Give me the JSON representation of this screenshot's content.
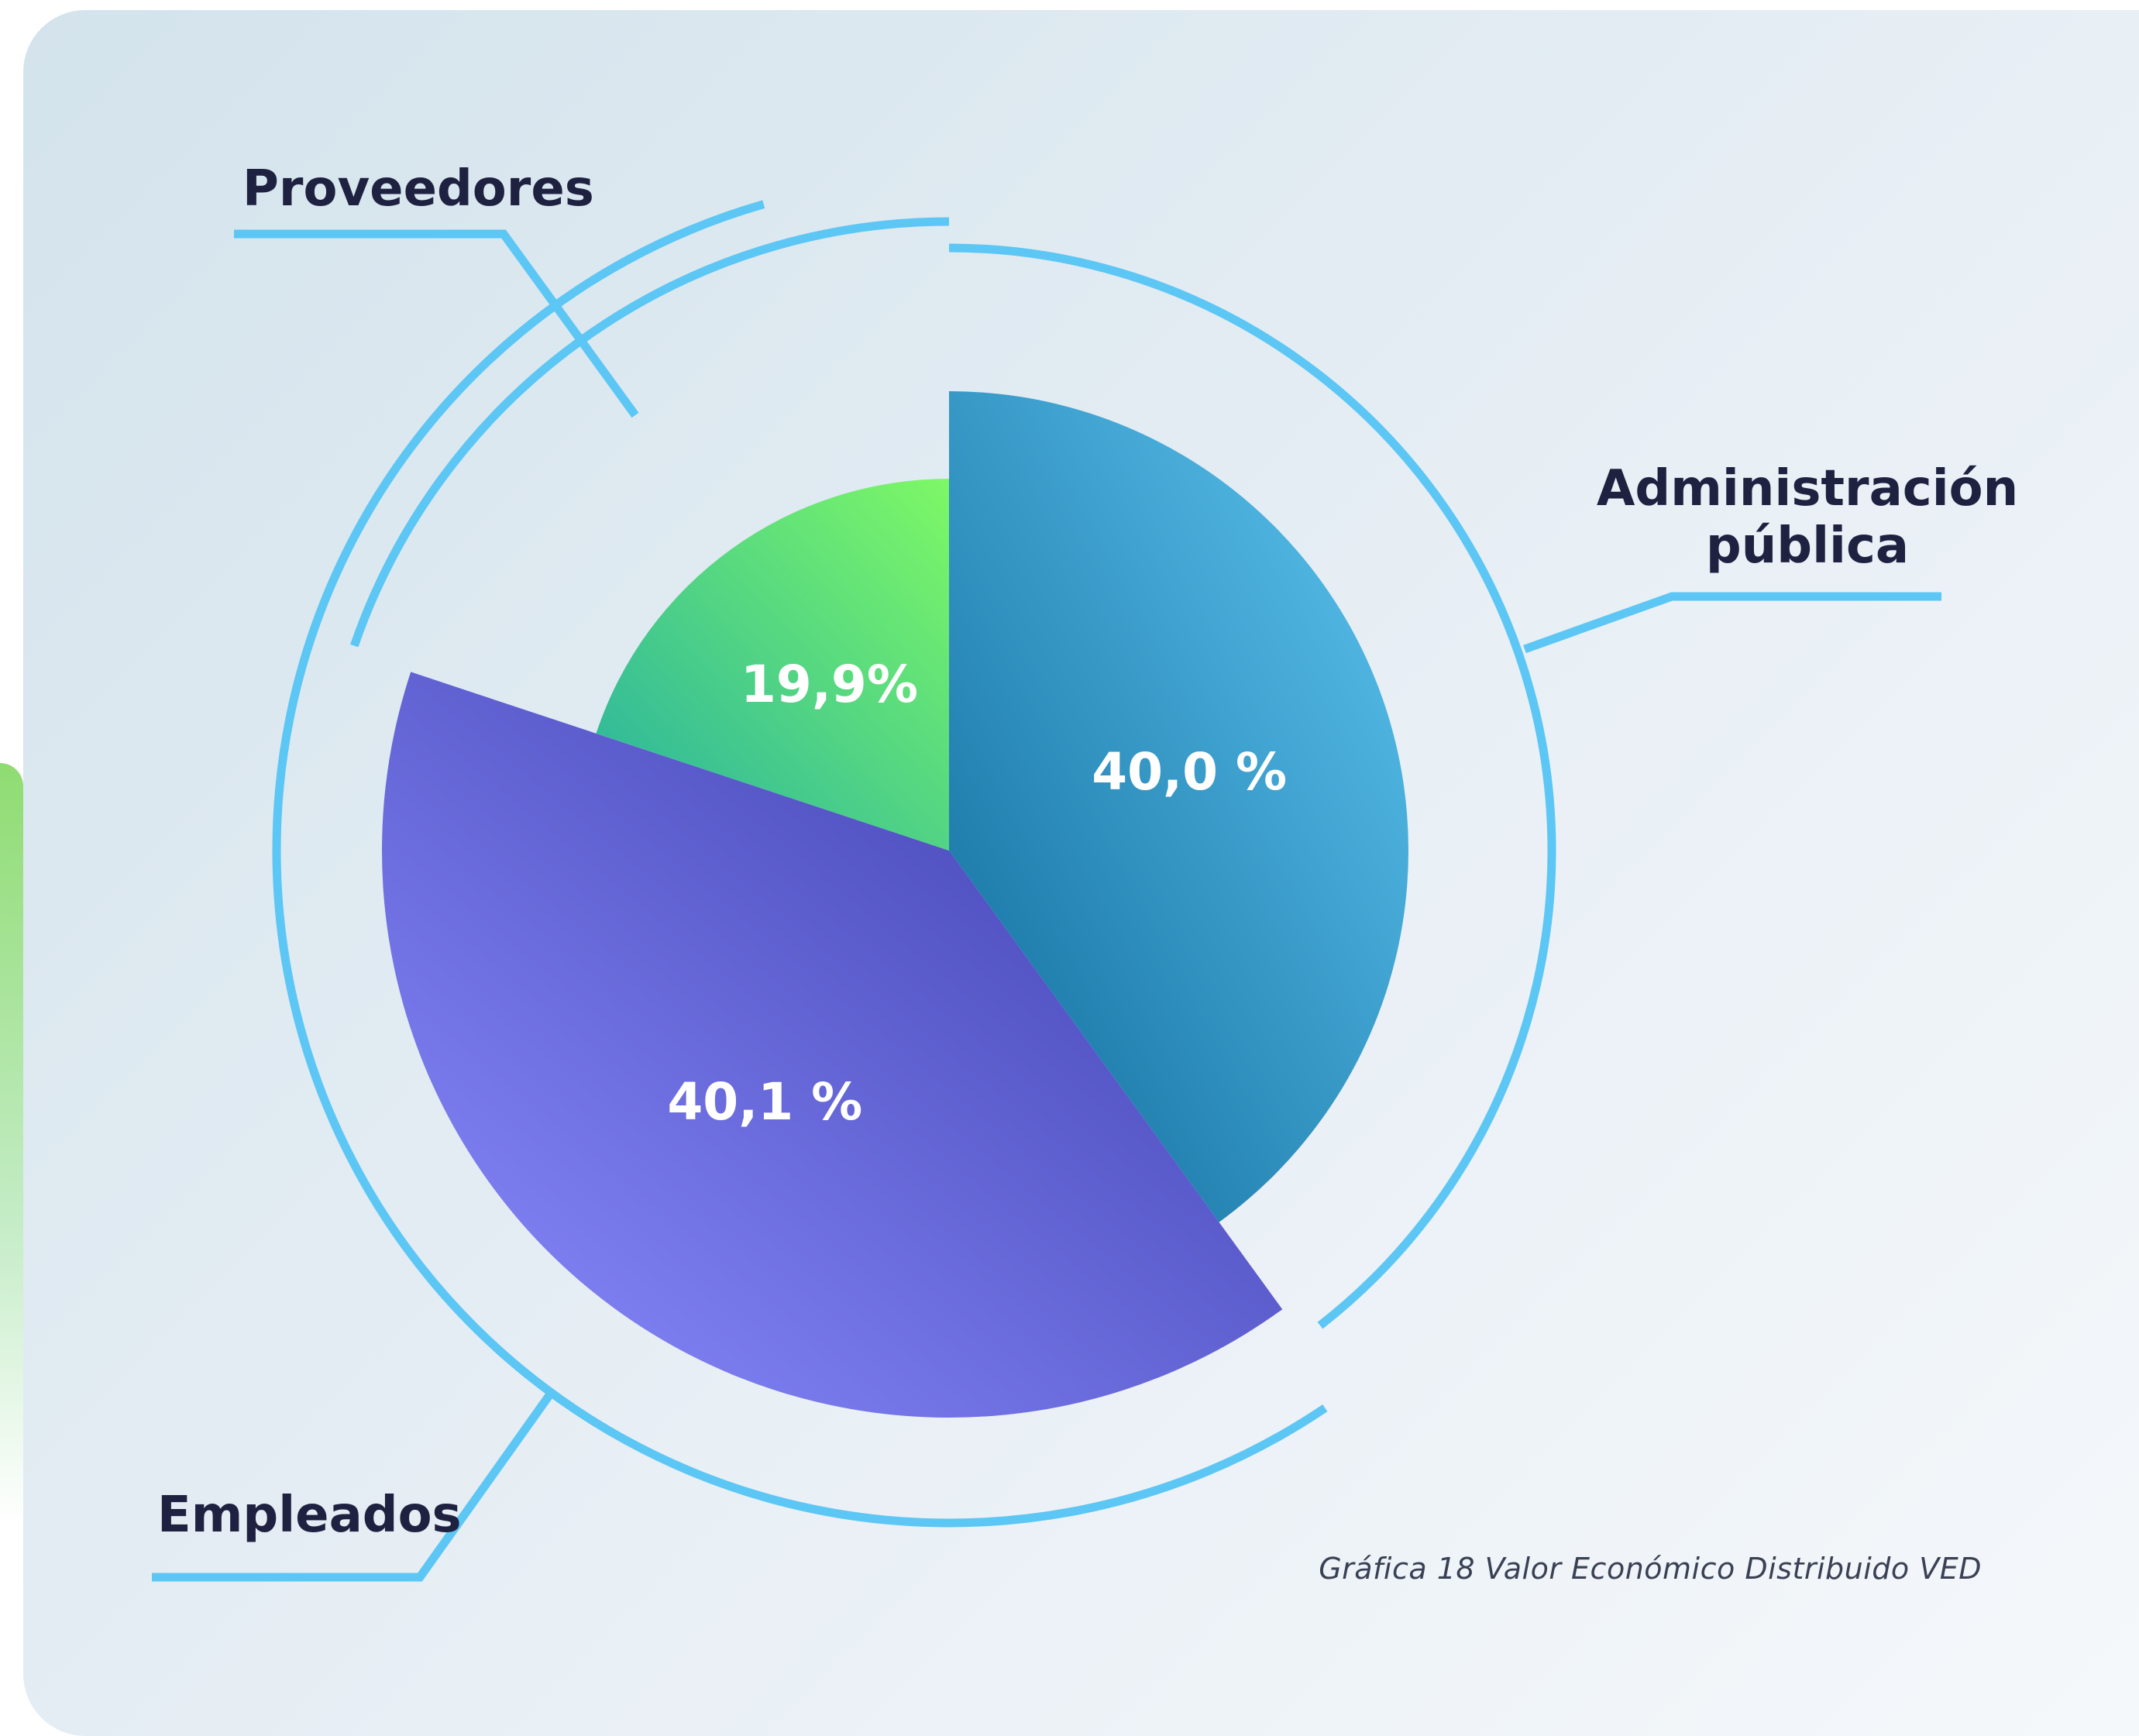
{
  "chart_data": {
    "type": "pie",
    "categories": [
      "Administración pública",
      "Empleados",
      "Proveedores"
    ],
    "values": [
      40.0,
      40.1,
      19.9
    ],
    "value_labels": [
      "40,0 %",
      "40,1 %",
      "19,9%"
    ],
    "category_label_lines": [
      [
        "Administración",
        "pública"
      ],
      [
        "Empleados"
      ],
      [
        "Proveedores"
      ]
    ],
    "colors": {
      "Administración pública": [
        "#0f6a9a",
        "#5fc6f2"
      ],
      "Empleados": [
        "#3a3aaa",
        "#8c8dff"
      ],
      "Proveedores": [
        "#25b0a2",
        "#7ef866"
      ],
      "ring": "#5cc6f4"
    }
  },
  "caption": "Gráfica 18 Valor Económico Distribuido VED"
}
